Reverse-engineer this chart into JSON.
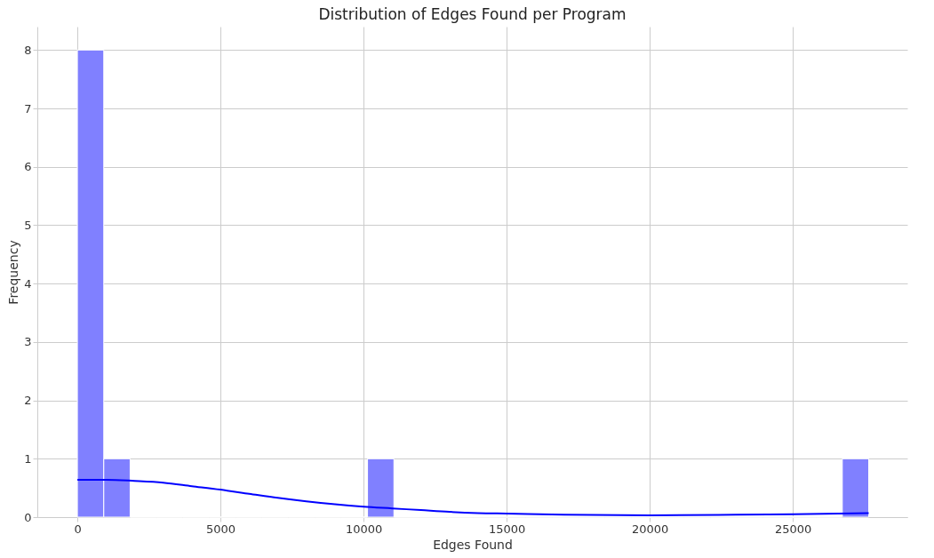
{
  "chart_data": {
    "type": "histogram",
    "title": "Distribution of Edges Found per Program",
    "xlabel": "Edges Found",
    "ylabel": "Frequency",
    "series": [
      {
        "color": "#8080ff",
        "bins": [
          0,
          922,
          1843,
          2765,
          3687,
          4608,
          5530,
          6452,
          7373,
          8295,
          9217,
          10138,
          11060,
          11982,
          12903,
          13825,
          14747,
          15668,
          16590,
          17512,
          18433,
          19355,
          20277,
          21198,
          22120,
          23042,
          23963,
          24885,
          25807,
          26728,
          27650
        ],
        "values": [
          8,
          1,
          0,
          0,
          0,
          0,
          0,
          0,
          0,
          0,
          0,
          1,
          0,
          0,
          0,
          0,
          0,
          0,
          0,
          0,
          0,
          0,
          0,
          0,
          0,
          0,
          0,
          0,
          0,
          1
        ]
      },
      {
        "type": "line",
        "color": "#0000ff",
        "x": [
          0,
          1000,
          2000,
          3000,
          4000,
          5000,
          6000,
          7000,
          8000,
          9000,
          10000,
          11000,
          12000,
          13000,
          14000,
          15000,
          17000,
          20000,
          23000,
          25000,
          27650
        ],
        "values": [
          0.64,
          0.64,
          0.62,
          0.59,
          0.53,
          0.47,
          0.4,
          0.33,
          0.27,
          0.22,
          0.18,
          0.15,
          0.12,
          0.09,
          0.07,
          0.06,
          0.04,
          0.03,
          0.04,
          0.05,
          0.07
        ]
      }
    ],
    "xlim": [
      -1400,
      29000
    ],
    "ylim": [
      0,
      8.4
    ],
    "xticks": [
      0,
      5000,
      10000,
      15000,
      20000,
      25000
    ],
    "yticks": [
      0,
      1,
      2,
      3,
      4,
      5,
      6,
      7,
      8
    ],
    "grid": true
  }
}
